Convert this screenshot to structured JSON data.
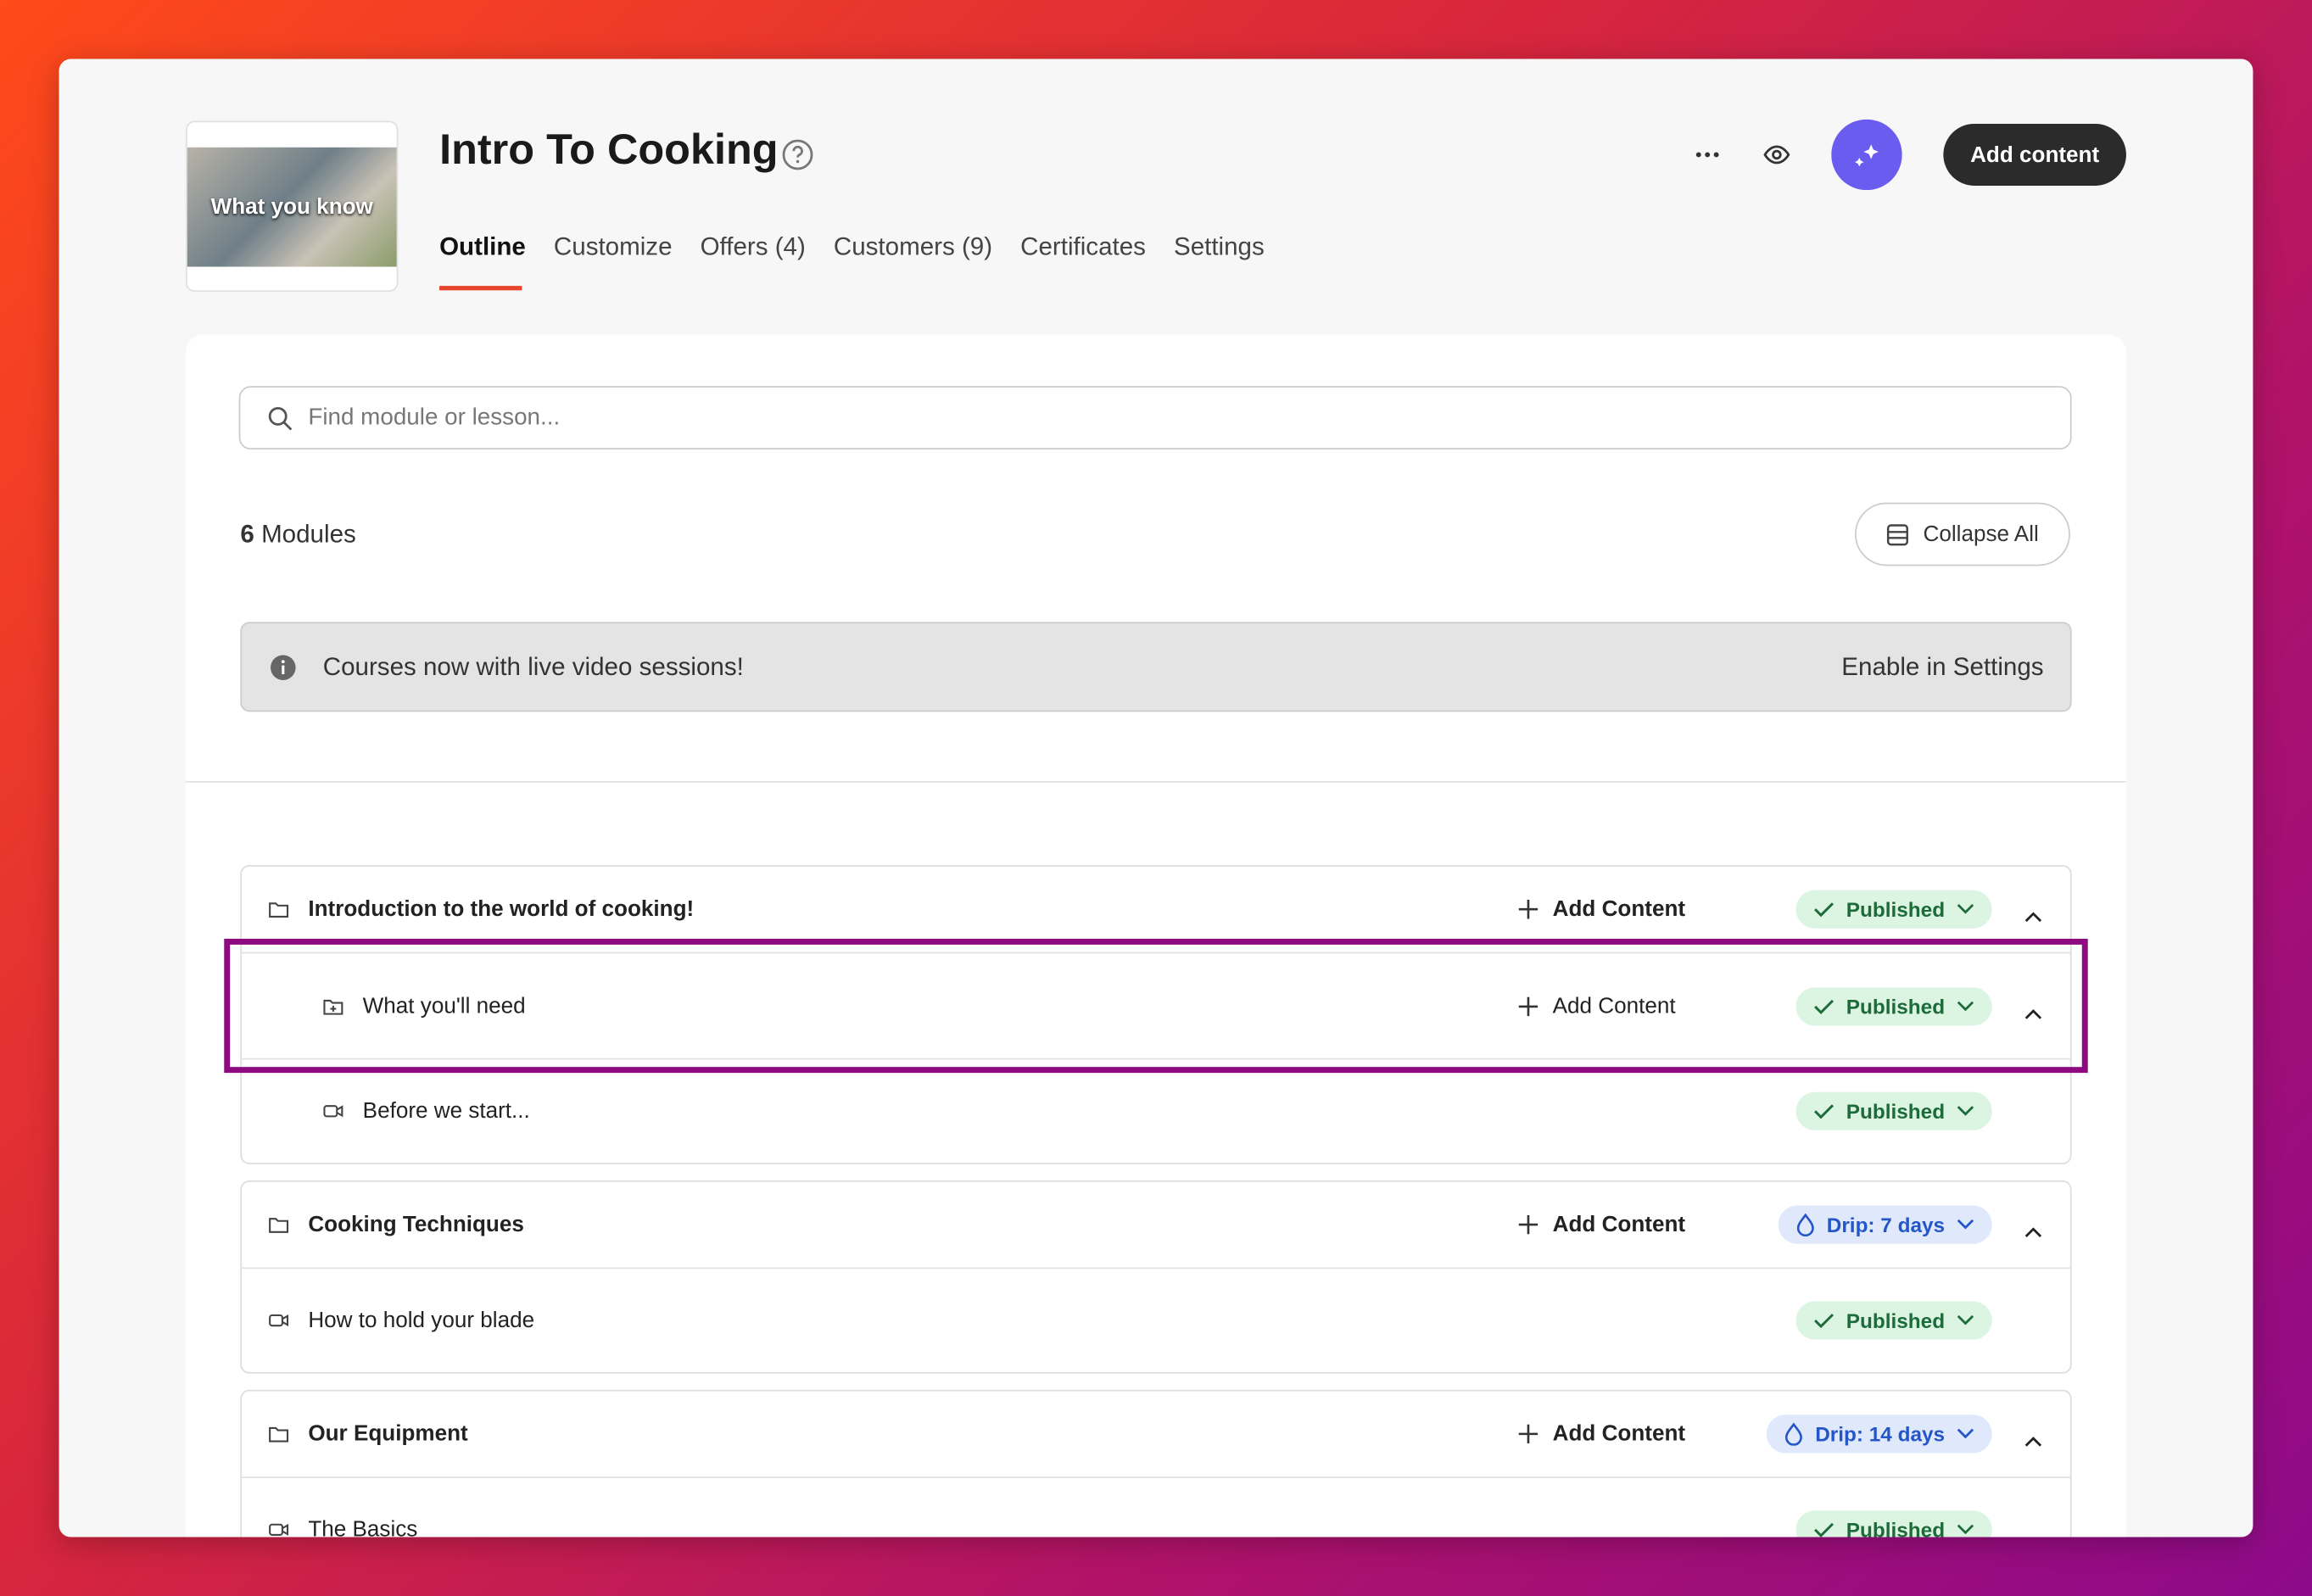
{
  "header": {
    "thumbnail_text": "What you know",
    "title": "Intro To Cooking",
    "tabs": [
      "Outline",
      "Customize",
      "Offers (4)",
      "Customers (9)",
      "Certificates",
      "Settings"
    ],
    "add_button": "Add content"
  },
  "search": {
    "placeholder": "Find module or lesson..."
  },
  "summary": {
    "count": "6",
    "label": "Modules",
    "collapse": "Collapse All"
  },
  "banner": {
    "text": "Courses now with live video sessions!",
    "link": "Enable in Settings"
  },
  "outline": [
    {
      "title": "Introduction to the world of cooking!",
      "add": "Add Content",
      "status": "Published",
      "children": [
        {
          "title": "What you'll need",
          "add": "Add Content",
          "status": "Published"
        },
        {
          "title": "Before we start...",
          "status": "Published"
        }
      ]
    },
    {
      "title": "Cooking Techniques",
      "add": "Add Content",
      "status": "Drip: 7 days",
      "children": [
        {
          "title": "How to hold your blade",
          "status": "Published"
        }
      ]
    },
    {
      "title": "Our Equipment",
      "add": "Add Content",
      "status": "Drip: 14 days",
      "children": [
        {
          "title": "The Basics",
          "status": "Published"
        }
      ]
    }
  ]
}
